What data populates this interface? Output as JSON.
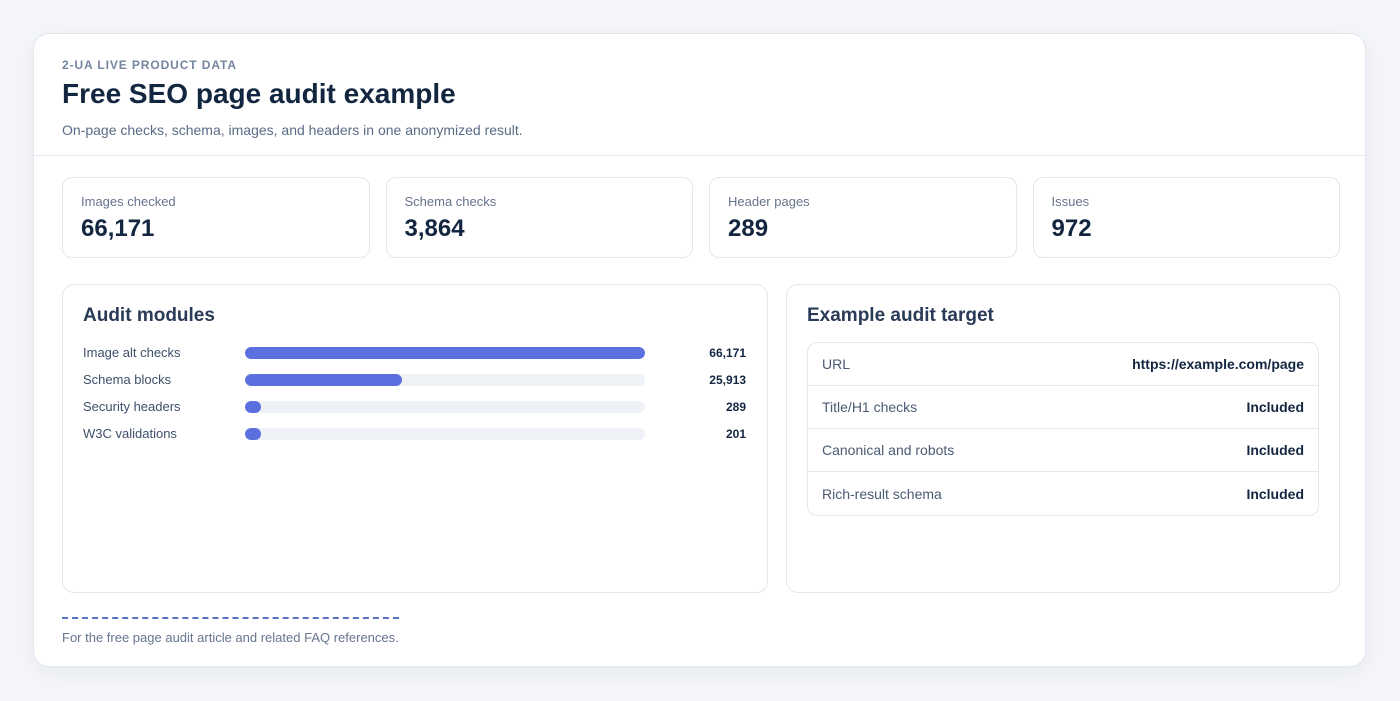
{
  "header": {
    "eyebrow": "2-UA LIVE PRODUCT DATA",
    "title": "Free SEO page audit example",
    "subtitle": "On-page checks, schema, images, and headers in one anonymized result."
  },
  "stats": [
    {
      "label": "Images checked",
      "value": "66,171"
    },
    {
      "label": "Schema checks",
      "value": "3,864"
    },
    {
      "label": "Header pages",
      "value": "289"
    },
    {
      "label": "Issues",
      "value": "972"
    }
  ],
  "modules": {
    "title": "Audit modules",
    "items": [
      {
        "label": "Image alt checks",
        "value": "66,171",
        "number": 66171
      },
      {
        "label": "Schema blocks",
        "value": "25,913",
        "number": 25913
      },
      {
        "label": "Security headers",
        "value": "289",
        "number": 289
      },
      {
        "label": "W3C validations",
        "value": "201",
        "number": 201
      }
    ]
  },
  "target": {
    "title": "Example audit target",
    "rows": [
      {
        "key": "URL",
        "value": "https://example.com/page"
      },
      {
        "key": "Title/H1 checks",
        "value": "Included"
      },
      {
        "key": "Canonical and robots",
        "value": "Included"
      },
      {
        "key": "Rich-result schema",
        "value": "Included"
      }
    ]
  },
  "footer": {
    "note": "For the free page audit article and related FAQ references."
  },
  "colors": {
    "accent": "#5b6fdf",
    "track": "#eef1f6"
  }
}
